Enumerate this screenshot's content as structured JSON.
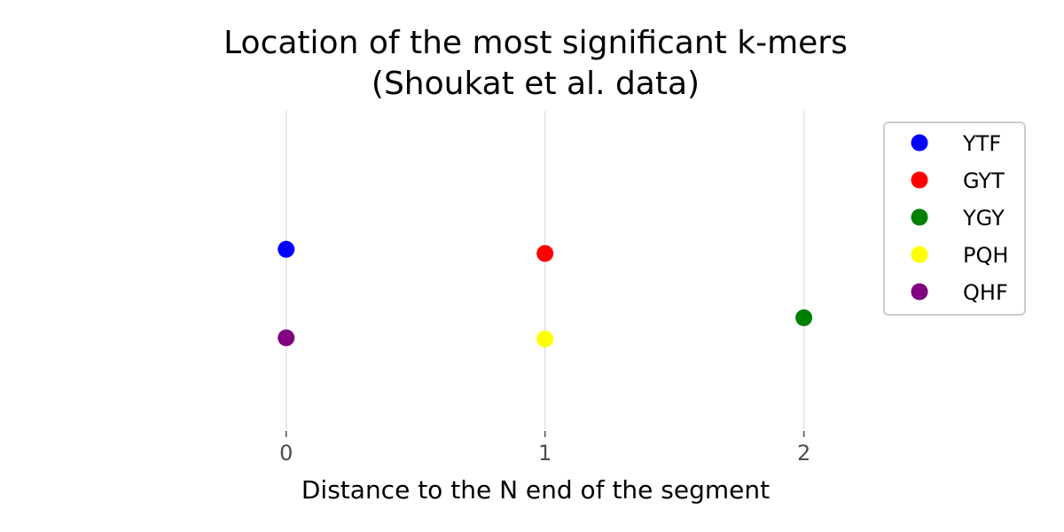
{
  "chart_data": {
    "type": "scatter",
    "title_line1": "Location of the most significant k-mers",
    "title_line2": "(Shoukat et al. data)",
    "xlabel": "Distance to the N end of the segment",
    "ylabel": "",
    "x_ticks": [
      0,
      1,
      2
    ],
    "xlim": [
      -0.65,
      2.2
    ],
    "ylim": [
      0,
      1
    ],
    "y_axis_visible": false,
    "grid": "vertical lines at x ticks",
    "legend_position": "upper right",
    "series": [
      {
        "name": "YTF",
        "color": "#0000ff",
        "points": [
          {
            "x": 0,
            "y": 0.565
          }
        ]
      },
      {
        "name": "GYT",
        "color": "#ff0000",
        "points": [
          {
            "x": 1,
            "y": 0.552
          }
        ]
      },
      {
        "name": "YGY",
        "color": "#008000",
        "points": [
          {
            "x": 2,
            "y": 0.35
          }
        ]
      },
      {
        "name": "PQH",
        "color": "#ffff00",
        "points": [
          {
            "x": 1,
            "y": 0.283
          }
        ]
      },
      {
        "name": "QHF",
        "color": "#800080",
        "points": [
          {
            "x": 0,
            "y": 0.287
          }
        ]
      }
    ]
  }
}
